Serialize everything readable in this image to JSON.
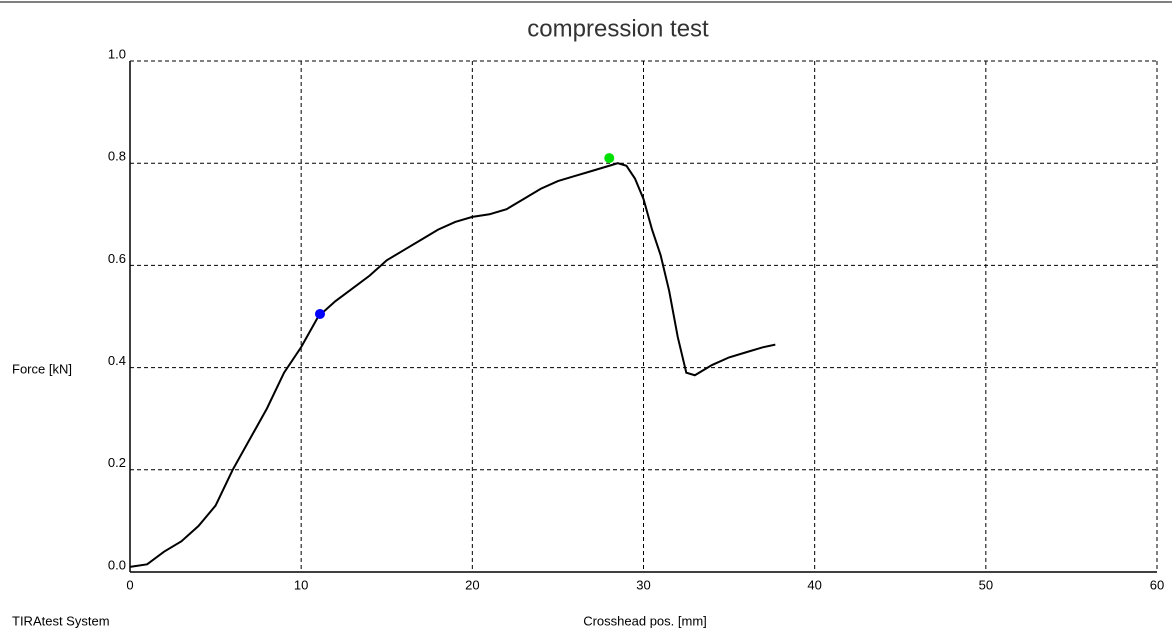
{
  "chart_data": {
    "type": "line",
    "title": "compression test",
    "x_label": "Crosshead pos. [mm]",
    "y_label": "Force [kN]",
    "footer": "TIRAtest System",
    "series": [
      {
        "name": "Force",
        "color": "#000000",
        "x": [
          0,
          1,
          2,
          3,
          4,
          5,
          6,
          7,
          8,
          9,
          10,
          11,
          12,
          13,
          14,
          15,
          16,
          17,
          18,
          19,
          20,
          21,
          22,
          23,
          24,
          25,
          26,
          27,
          28,
          28.5,
          29,
          29.5,
          30,
          30.5,
          31,
          31.5,
          32,
          32.5,
          33,
          34,
          35,
          36,
          37,
          37.7
        ],
        "values": [
          0.01,
          0.015,
          0.04,
          0.06,
          0.09,
          0.13,
          0.2,
          0.26,
          0.32,
          0.39,
          0.44,
          0.5,
          0.53,
          0.555,
          0.58,
          0.61,
          0.63,
          0.65,
          0.67,
          0.685,
          0.695,
          0.7,
          0.71,
          0.73,
          0.75,
          0.765,
          0.775,
          0.785,
          0.795,
          0.8,
          0.795,
          0.77,
          0.73,
          0.67,
          0.62,
          0.55,
          0.46,
          0.39,
          0.385,
          0.405,
          0.42,
          0.43,
          0.44,
          0.445
        ]
      }
    ],
    "markers": [
      {
        "x": 11.1,
        "y": 0.505,
        "color": "#0000ff"
      },
      {
        "x": 28,
        "y": 0.81,
        "color": "#00e000"
      }
    ],
    "xlim": [
      0,
      60
    ],
    "xticks": [
      0,
      10,
      20,
      30,
      40,
      50,
      60
    ],
    "ylim": [
      0,
      1
    ],
    "yticks": [
      {
        "value": 0,
        "label": "0.0"
      },
      {
        "value": 0.2,
        "label": "0.2"
      },
      {
        "value": 0.4,
        "label": "0.4"
      },
      {
        "value": 0.6,
        "label": "0.6"
      },
      {
        "value": 0.8,
        "label": "0.8"
      },
      {
        "value": 1,
        "label": "1.0"
      }
    ],
    "grid": true
  }
}
